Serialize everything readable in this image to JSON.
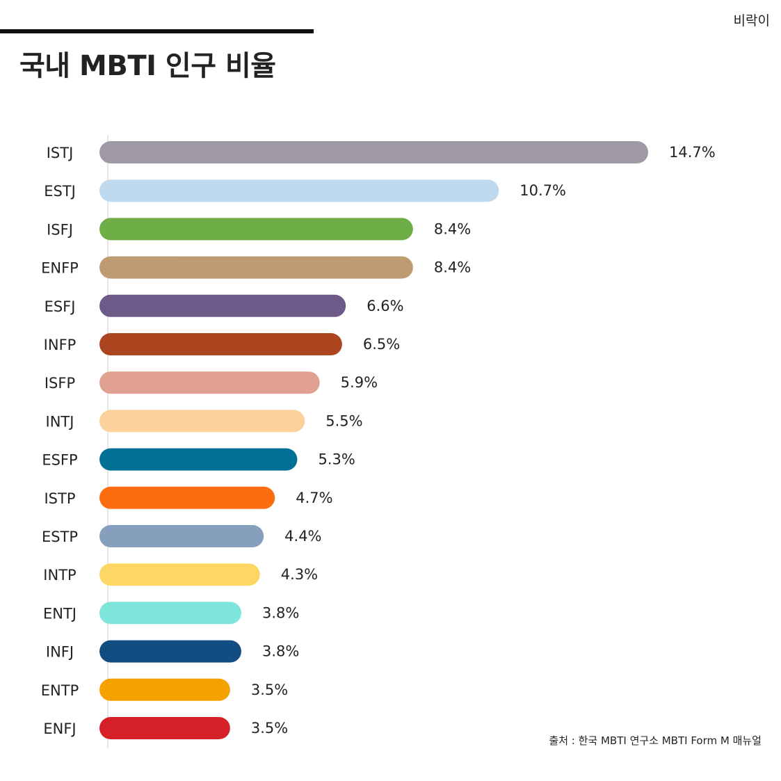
{
  "header": {
    "brand": "비락이",
    "title": "국내 MBTI 인구 비율"
  },
  "footer": {
    "source": "출처 : 한국 MBTI 연구소 MBTI Form M 매뉴얼"
  },
  "chart_data": {
    "type": "bar",
    "orientation": "horizontal",
    "title": "국내 MBTI 인구 비율",
    "xlabel": "",
    "ylabel": "",
    "xlim": [
      0,
      14.7
    ],
    "grid": false,
    "legend": "none",
    "categories": [
      "ISTJ",
      "ESTJ",
      "ISFJ",
      "ENFP",
      "ESFJ",
      "INFP",
      "ISFP",
      "INTJ",
      "ESFP",
      "ISTP",
      "ESTP",
      "INTP",
      "ENTJ",
      "INFJ",
      "ENTP",
      "ENFJ"
    ],
    "values": [
      14.7,
      10.7,
      8.4,
      8.4,
      6.6,
      6.5,
      5.9,
      5.5,
      5.3,
      4.7,
      4.4,
      4.3,
      3.8,
      3.8,
      3.5,
      3.5
    ],
    "value_labels": [
      "14.7%",
      "10.7%",
      "8.4%",
      "8.4%",
      "6.6%",
      "6.5%",
      "5.9%",
      "5.5%",
      "5.3%",
      "4.7%",
      "4.4%",
      "4.3%",
      "3.8%",
      "3.8%",
      "3.5%",
      "3.5%"
    ],
    "colors": [
      "#9e99a4",
      "#bfd9ef",
      "#6fad46",
      "#bf9b71",
      "#6e5a88",
      "#ad4420",
      "#e0a092",
      "#fcd19c",
      "#017096",
      "#fd6d10",
      "#869fbc",
      "#fcd764",
      "#7ee5da",
      "#124d82",
      "#f5a200",
      "#d52028"
    ]
  }
}
